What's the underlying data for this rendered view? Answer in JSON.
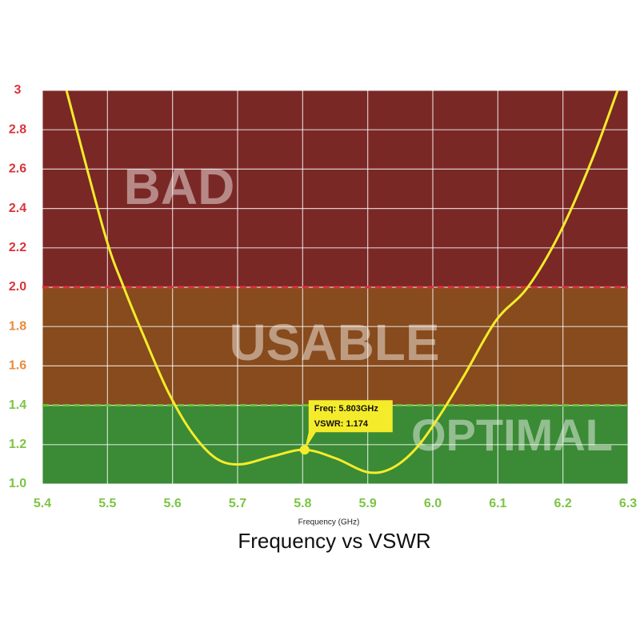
{
  "chart_data": {
    "type": "line",
    "title": "Frequency vs VSWR",
    "x_label": "Frequency (GHz)",
    "xlim": [
      5.4,
      6.3
    ],
    "xticks": [
      5.4,
      5.5,
      5.6,
      5.7,
      5.8,
      5.9,
      {
        "value": 6,
        "label": "6.0"
      },
      6.1,
      6.2,
      6.3
    ],
    "ylim": [
      1,
      3
    ],
    "yticks": [
      {
        "value": 1,
        "label": "1.0"
      },
      1.2,
      1.4,
      1.6,
      1.8,
      {
        "value": 2,
        "label": "2.0"
      },
      2.2,
      2.4,
      2.6,
      2.8,
      3
    ],
    "ytick_colors": [
      "#7cc444",
      "#7cc444",
      "#7cc444",
      "#e98b3c",
      "#e98b3c",
      "#d9343a",
      "#d9343a",
      "#d9343a",
      "#d9343a",
      "#d9343a",
      "#d9343a"
    ],
    "xtick_color": "#7cc444",
    "grid": true,
    "zones": [
      {
        "name": "BAD",
        "from": 2,
        "to": 3,
        "color": "#7a2826",
        "edge_color": "#e0303a"
      },
      {
        "name": "USABLE",
        "from": 1.4,
        "to": 2,
        "color": "#874b1d",
        "edge_color": "#72c03c"
      },
      {
        "name": "OPTIMAL",
        "from": 1,
        "to": 1.4,
        "color": "#3b8a36"
      }
    ],
    "series": [
      {
        "name": "VSWR",
        "color": "#f4ec2a",
        "x": [
          5.437,
          5.495,
          5.525,
          5.556,
          5.593,
          5.63,
          5.667,
          5.704,
          5.753,
          5.803,
          5.851,
          5.9,
          5.937,
          5.974,
          6.011,
          6.048,
          6.097,
          6.146,
          6.196,
          6.245,
          6.284
        ],
        "values": [
          3.0,
          2.28,
          2.0,
          1.75,
          1.47,
          1.26,
          1.13,
          1.1,
          1.14,
          1.174,
          1.13,
          1.06,
          1.08,
          1.18,
          1.35,
          1.55,
          1.83,
          2.0,
          2.28,
          2.65,
          3.0
        ]
      }
    ],
    "marker": {
      "x": 5.803,
      "y": 1.174,
      "freq_label": "Freq: 5.803GHz",
      "vswr_label": "VSWR: 1.174"
    }
  }
}
